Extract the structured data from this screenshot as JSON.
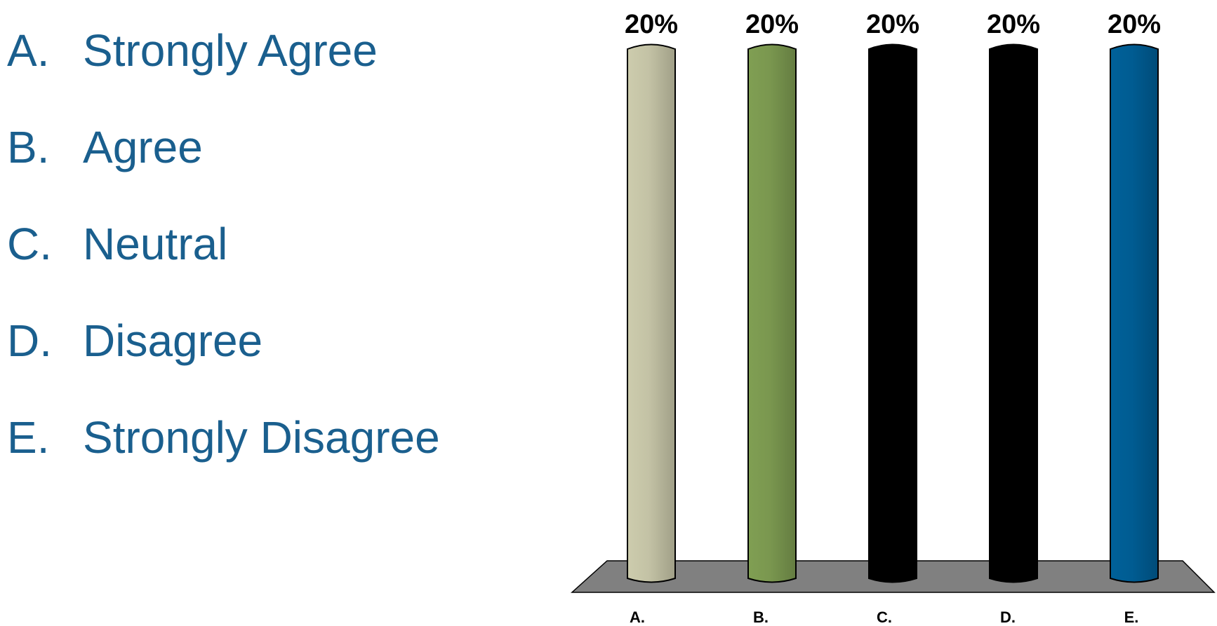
{
  "options": [
    {
      "letter": "A.",
      "text": "Strongly Agree"
    },
    {
      "letter": "B.",
      "text": "Agree"
    },
    {
      "letter": "C.",
      "text": "Neutral"
    },
    {
      "letter": "D.",
      "text": "Disagree"
    },
    {
      "letter": "E.",
      "text": "Strongly Disagree"
    }
  ],
  "colors": {
    "option_text": "#1a5f8e",
    "floor": "#808080"
  },
  "chart_data": {
    "type": "bar",
    "title": "",
    "xlabel": "",
    "ylabel": "",
    "categories": [
      "A.",
      "B.",
      "C.",
      "D.",
      "E."
    ],
    "values": [
      20,
      20,
      20,
      20,
      20
    ],
    "data_labels": [
      "20%",
      "20%",
      "20%",
      "20%",
      "20%"
    ],
    "ylim": [
      0,
      20
    ],
    "grid": false,
    "legend": "none",
    "bar_colors": [
      "#c3c2a5",
      "#7a974f",
      "#000000",
      "#000000",
      "#005c92"
    ]
  }
}
